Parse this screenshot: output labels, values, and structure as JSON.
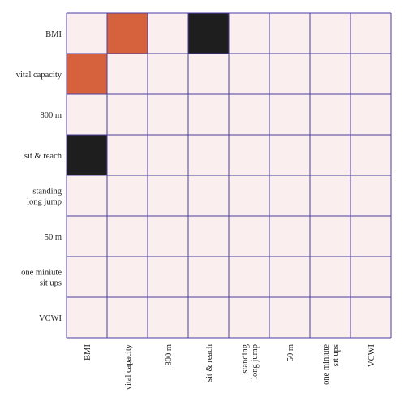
{
  "chart_data": {
    "type": "heatmap",
    "rows": [
      "BMI",
      "vital capacity",
      "800 m",
      "sit & reach",
      "standing long jump",
      "50 m",
      "one miniute sit ups",
      "VCWI"
    ],
    "columns": [
      "BMI",
      "vital capacity",
      "800 m",
      "sit & reach",
      "standing long jump",
      "50 m",
      "one miniute sit ups",
      "VCWI"
    ],
    "row_tick_labels": [
      [
        "BMI"
      ],
      [
        "vital capacity"
      ],
      [
        "800 m"
      ],
      [
        "sit & reach"
      ],
      [
        "standing",
        "long jump"
      ],
      [
        "50 m"
      ],
      [
        "one miniute",
        "sit ups"
      ],
      [
        "VCWI"
      ]
    ],
    "column_tick_labels": [
      [
        "BMI"
      ],
      [
        "vital capacity"
      ],
      [
        "800 m"
      ],
      [
        "sit & reach"
      ],
      [
        "standing",
        "long jump"
      ],
      [
        "50 m"
      ],
      [
        "one miniute",
        "sit ups"
      ],
      [
        "VCWI"
      ]
    ],
    "cells": [
      [
        "empty",
        "orange",
        "empty",
        "black",
        "empty",
        "empty",
        "empty",
        "empty"
      ],
      [
        "orange",
        "empty",
        "empty",
        "empty",
        "empty",
        "empty",
        "empty",
        "empty"
      ],
      [
        "empty",
        "empty",
        "empty",
        "empty",
        "empty",
        "empty",
        "empty",
        "empty"
      ],
      [
        "black",
        "empty",
        "empty",
        "empty",
        "empty",
        "empty",
        "empty",
        "empty"
      ],
      [
        "empty",
        "empty",
        "empty",
        "empty",
        "empty",
        "empty",
        "empty",
        "empty"
      ],
      [
        "empty",
        "empty",
        "empty",
        "empty",
        "empty",
        "empty",
        "empty",
        "empty"
      ],
      [
        "empty",
        "empty",
        "empty",
        "empty",
        "empty",
        "empty",
        "empty",
        "empty"
      ],
      [
        "empty",
        "empty",
        "empty",
        "empty",
        "empty",
        "empty",
        "empty",
        "empty"
      ]
    ],
    "colors": {
      "empty": "#fbeeee",
      "orange": "#d5613d",
      "black": "#1e1e1e",
      "grid": "#4a3fa0"
    },
    "grid": true,
    "legend": "none"
  }
}
